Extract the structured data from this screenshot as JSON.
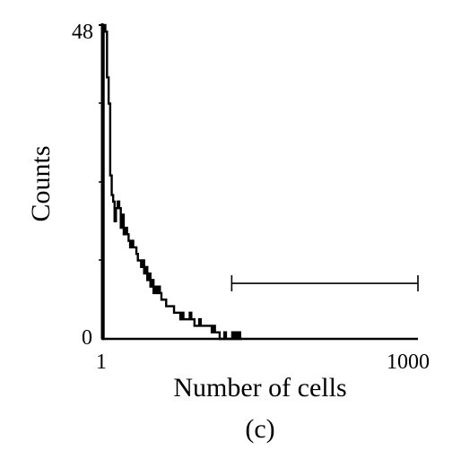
{
  "chart_data": {
    "type": "line",
    "subtype": "flow-cytometry-histogram",
    "title": "",
    "xlabel": "Number of cells",
    "ylabel": "Counts",
    "caption": "(c)",
    "x_scale": "log",
    "xlim": [
      1,
      1000
    ],
    "ylim": [
      0,
      48
    ],
    "x_tick_labels": [
      "1",
      "1000"
    ],
    "y_tick_labels": [
      "0",
      "48"
    ],
    "grid": false,
    "legend": "none",
    "line_color": "#000000",
    "series": [
      {
        "x": [
          1.0,
          1.03,
          1.07,
          1.11,
          1.15,
          1.19,
          1.23,
          1.27,
          1.31,
          1.35,
          1.4,
          1.45,
          1.5,
          1.55,
          1.6,
          1.66,
          1.72,
          1.78,
          1.84,
          1.9,
          1.97,
          2.04,
          2.11,
          2.18,
          2.26,
          2.34,
          2.42,
          2.5,
          2.59,
          2.68,
          2.77,
          2.87,
          2.97,
          3.07,
          3.18,
          3.29,
          3.41,
          3.53,
          3.65,
          3.78,
          3.91,
          4.05,
          4.19,
          4.34,
          4.49,
          4.65,
          4.81,
          4.98,
          5.15,
          5.33,
          5.52,
          5.71,
          5.91,
          6.12,
          6.33,
          6.55,
          6.78,
          7.02,
          7.27,
          7.52,
          7.79,
          8.06,
          8.34,
          8.63,
          8.93,
          9.25,
          9.57,
          9.91,
          10.25,
          10.61,
          10.98,
          11.37,
          11.77,
          12.18,
          12.61,
          13.05,
          13.51,
          13.98,
          14.47,
          14.98,
          15.5,
          16.05,
          16.61,
          17.19,
          17.79,
          18.41,
          19.06,
          19.73,
          20.42
        ],
        "y": [
          0,
          48,
          47,
          40,
          36,
          25,
          22,
          21,
          18,
          20,
          21,
          20,
          17,
          19,
          16,
          17,
          16,
          15,
          14,
          15,
          14,
          14,
          13,
          12,
          12,
          11,
          12,
          10,
          11,
          9,
          10,
          8,
          9,
          7,
          8,
          7,
          8,
          7,
          6,
          6,
          6,
          5,
          5,
          5,
          5,
          5,
          4,
          4,
          4,
          4,
          3,
          4,
          3,
          3,
          3,
          3,
          4,
          3,
          3,
          2,
          2,
          2,
          3,
          2,
          2,
          2,
          2,
          2,
          2,
          2,
          1,
          2,
          1,
          1,
          1,
          0,
          0,
          0,
          1,
          0,
          0,
          0,
          0,
          1,
          0,
          1,
          0,
          1,
          0
        ]
      }
    ],
    "gate": {
      "x_start": 17.0,
      "x_end": 1000,
      "y": 8.5
    }
  }
}
